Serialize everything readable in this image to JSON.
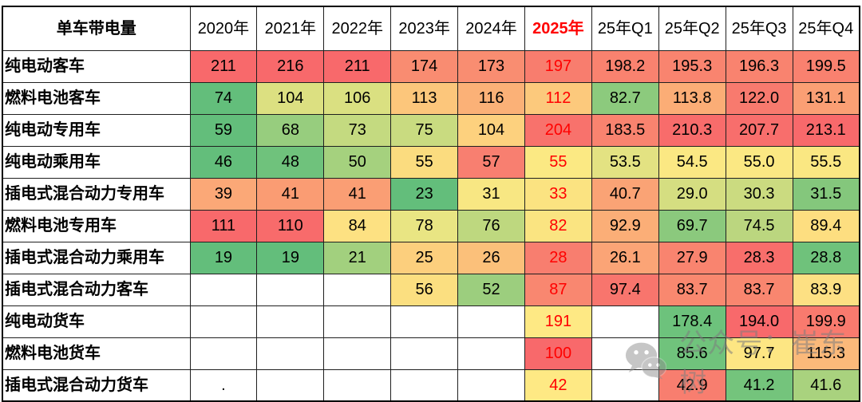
{
  "table": {
    "title": {
      "text": "单车带电量",
      "color": "#FF0000"
    },
    "columns": [
      {
        "label": "2020年",
        "red": false
      },
      {
        "label": "2021年",
        "red": false
      },
      {
        "label": "2022年",
        "red": false
      },
      {
        "label": "2023年",
        "red": false
      },
      {
        "label": "2024年",
        "red": false
      },
      {
        "label": "2025年",
        "red": true
      },
      {
        "label": "25年Q1",
        "red": false
      },
      {
        "label": "25年Q2",
        "red": false
      },
      {
        "label": "25年Q3",
        "red": false
      },
      {
        "label": "25年Q4",
        "red": false
      }
    ],
    "rows": [
      {
        "label": "纯电动客车",
        "cells": [
          {
            "v": "211",
            "bg": "#F8696B"
          },
          {
            "v": "216",
            "bg": "#F8696B"
          },
          {
            "v": "211",
            "bg": "#F8696B"
          },
          {
            "v": "174",
            "bg": "#F98C71"
          },
          {
            "v": "173",
            "bg": "#F98D71"
          },
          {
            "v": "197",
            "bg": "#F87D6E",
            "red": true
          },
          {
            "v": "198.2",
            "bg": "#F9826F"
          },
          {
            "v": "195.3",
            "bg": "#F9846F"
          },
          {
            "v": "196.3",
            "bg": "#F9836F"
          },
          {
            "v": "199.5",
            "bg": "#F9816F"
          }
        ]
      },
      {
        "label": "燃料电池客车",
        "cells": [
          {
            "v": "74",
            "bg": "#63BE7B"
          },
          {
            "v": "104",
            "bg": "#DCE081"
          },
          {
            "v": "106",
            "bg": "#DAE081"
          },
          {
            "v": "113",
            "bg": "#FCC67B"
          },
          {
            "v": "116",
            "bg": "#FBB177"
          },
          {
            "v": "112",
            "bg": "#FCC97C",
            "red": true
          },
          {
            "v": "82.7",
            "bg": "#8CCA7D"
          },
          {
            "v": "113.8",
            "bg": "#FBAD76"
          },
          {
            "v": "122.0",
            "bg": "#F87A6E"
          },
          {
            "v": "131.1",
            "bg": "#FA9F74"
          }
        ]
      },
      {
        "label": "纯电动专用车",
        "cells": [
          {
            "v": "59",
            "bg": "#63BE7B"
          },
          {
            "v": "68",
            "bg": "#97CD7E"
          },
          {
            "v": "73",
            "bg": "#C4DA80"
          },
          {
            "v": "75",
            "bg": "#C9DB80"
          },
          {
            "v": "104",
            "bg": "#FDD17E"
          },
          {
            "v": "204",
            "bg": "#F8726C",
            "red": true
          },
          {
            "v": "183.5",
            "bg": "#F9836F"
          },
          {
            "v": "210.3",
            "bg": "#F86C6B"
          },
          {
            "v": "207.7",
            "bg": "#F86E6C"
          },
          {
            "v": "213.1",
            "bg": "#F8696B"
          }
        ]
      },
      {
        "label": "纯电动乘用车",
        "cells": [
          {
            "v": "46",
            "bg": "#63BE7B"
          },
          {
            "v": "48",
            "bg": "#6FC27C"
          },
          {
            "v": "50",
            "bg": "#A5D17E"
          },
          {
            "v": "55",
            "bg": "#FBDC7F"
          },
          {
            "v": "57",
            "bg": "#F87F70"
          },
          {
            "v": "55",
            "bg": "#FBE983",
            "red": true
          },
          {
            "v": "53.5",
            "bg": "#E3E282"
          },
          {
            "v": "54.5",
            "bg": "#FBE883"
          },
          {
            "v": "55.0",
            "bg": "#FBE883"
          },
          {
            "v": "55.5",
            "bg": "#FAE782"
          }
        ]
      },
      {
        "label": "插电式混合动力专用车",
        "cells": [
          {
            "v": "39",
            "bg": "#FBA877"
          },
          {
            "v": "41",
            "bg": "#FA9C73"
          },
          {
            "v": "41",
            "bg": "#FA9E74"
          },
          {
            "v": "23",
            "bg": "#63BE7B"
          },
          {
            "v": "31",
            "bg": "#F8E783"
          },
          {
            "v": "33",
            "bg": "#FBE381",
            "red": true
          },
          {
            "v": "40.7",
            "bg": "#FAA375"
          },
          {
            "v": "29.0",
            "bg": "#D5DE81"
          },
          {
            "v": "30.3",
            "bg": "#CBDB80"
          },
          {
            "v": "31.5",
            "bg": "#84C77C"
          }
        ]
      },
      {
        "label": "燃料电池专用车",
        "cells": [
          {
            "v": "111",
            "bg": "#F8696B"
          },
          {
            "v": "110",
            "bg": "#F86B6B"
          },
          {
            "v": "84",
            "bg": "#FDE182"
          },
          {
            "v": "78",
            "bg": "#E9E583"
          },
          {
            "v": "76",
            "bg": "#BED87F"
          },
          {
            "v": "82",
            "bg": "#FAE481",
            "red": true
          },
          {
            "v": "92.9",
            "bg": "#FBAE77"
          },
          {
            "v": "69.7",
            "bg": "#8BC97D"
          },
          {
            "v": "74.5",
            "bg": "#BBD67F"
          },
          {
            "v": "89.4",
            "bg": "#FDDE80"
          }
        ]
      },
      {
        "label": "插电式混合动力乘用车",
        "cells": [
          {
            "v": "19",
            "bg": "#63BE7B"
          },
          {
            "v": "19",
            "bg": "#63BE7B"
          },
          {
            "v": "21",
            "bg": "#A2D07E"
          },
          {
            "v": "25",
            "bg": "#FCCF7D"
          },
          {
            "v": "26",
            "bg": "#FBC07A"
          },
          {
            "v": "28",
            "bg": "#F87E6F",
            "red": true
          },
          {
            "v": "26.1",
            "bg": "#FBA476"
          },
          {
            "v": "27.9",
            "bg": "#F9846F"
          },
          {
            "v": "28.3",
            "bg": "#F86E6B"
          },
          {
            "v": "28.8",
            "bg": "#6FC27B"
          }
        ]
      },
      {
        "label": "插电式混合动力客车",
        "cells": [
          {
            "v": "",
            "bg": "#FFFFFF"
          },
          {
            "v": "",
            "bg": "#FFFFFF"
          },
          {
            "v": "",
            "bg": "#FFFFFF"
          },
          {
            "v": "56",
            "bg": "#FBDF80"
          },
          {
            "v": "52",
            "bg": "#9CCE7E"
          },
          {
            "v": "87",
            "bg": "#F98770",
            "red": true
          },
          {
            "v": "97.4",
            "bg": "#F8756D"
          },
          {
            "v": "83.7",
            "bg": "#F9886F"
          },
          {
            "v": "83.7",
            "bg": "#F9866F"
          },
          {
            "v": "83.9",
            "bg": "#FDE083"
          }
        ]
      },
      {
        "label": "纯电动货车",
        "cells": [
          {
            "v": "",
            "bg": "#FFFFFF"
          },
          {
            "v": "",
            "bg": "#FFFFFF"
          },
          {
            "v": "",
            "bg": "#FFFFFF"
          },
          {
            "v": "",
            "bg": "#FFFFFF"
          },
          {
            "v": "",
            "bg": "#FFFFFF"
          },
          {
            "v": "191",
            "bg": "#FEE984",
            "red": true
          },
          {
            "v": "",
            "bg": "#FFFFFF"
          },
          {
            "v": "178.4",
            "bg": "#6DC27C"
          },
          {
            "v": "194.0",
            "bg": "#F8696B"
          },
          {
            "v": "199.9",
            "bg": "#F97A6E"
          }
        ]
      },
      {
        "label": "燃料电池货车",
        "cells": [
          {
            "v": "",
            "bg": "#FFFFFF"
          },
          {
            "v": "",
            "bg": "#FFFFFF"
          },
          {
            "v": "",
            "bg": "#FFFFFF"
          },
          {
            "v": "",
            "bg": "#FFFFFF"
          },
          {
            "v": "",
            "bg": "#FFFFFF"
          },
          {
            "v": "100",
            "bg": "#F8696B",
            "red": true
          },
          {
            "v": "",
            "bg": "#FFFFFF"
          },
          {
            "v": "85.6",
            "bg": "#70C37C"
          },
          {
            "v": "97.7",
            "bg": "#FDE683"
          },
          {
            "v": "115.3",
            "bg": "#FBB97A"
          }
        ]
      },
      {
        "label": "插电式混合动力货车",
        "cells": [
          {
            "v": ".",
            "bg": "#FFFFFF"
          },
          {
            "v": "",
            "bg": "#FFFFFF"
          },
          {
            "v": "",
            "bg": "#FFFFFF"
          },
          {
            "v": "",
            "bg": "#FFFFFF"
          },
          {
            "v": "",
            "bg": "#FFFFFF"
          },
          {
            "v": "42",
            "bg": "#FEE984",
            "red": true
          },
          {
            "v": "",
            "bg": "#FFFFFF"
          },
          {
            "v": "42.9",
            "bg": "#F87E6F"
          },
          {
            "v": "41.2",
            "bg": "#74C47C"
          },
          {
            "v": "41.6",
            "bg": "#A9D27E"
          }
        ]
      }
    ]
  },
  "watermark": {
    "text": "公众号：崔东树",
    "icon": "wechat-icon",
    "color": "#7d7d7d"
  },
  "accent_colors": {
    "red_text": "#FF0000",
    "scale_low": "#63BE7B",
    "scale_mid": "#FFEB84",
    "scale_high": "#F8696B"
  },
  "chart_data": {
    "type": "heatmap",
    "title": "单车带电量",
    "legend_position": "none",
    "grid": true,
    "color_scale": "green (low) → yellow → red (high)",
    "columns": [
      "2020年",
      "2021年",
      "2022年",
      "2023年",
      "2024年",
      "2025年",
      "25年Q1",
      "25年Q2",
      "25年Q3",
      "25年Q4"
    ],
    "rows": [
      "纯电动客车",
      "燃料电池客车",
      "纯电动专用车",
      "纯电动乘用车",
      "插电式混合动力专用车",
      "燃料电池专用车",
      "插电式混合动力乘用车",
      "插电式混合动力客车",
      "纯电动货车",
      "燃料电池货车",
      "插电式混合动力货车"
    ],
    "values": [
      [
        211,
        216,
        211,
        174,
        173,
        197,
        198.2,
        195.3,
        196.3,
        199.5
      ],
      [
        74,
        104,
        106,
        113,
        116,
        112,
        82.7,
        113.8,
        122.0,
        131.1
      ],
      [
        59,
        68,
        73,
        75,
        104,
        204,
        183.5,
        210.3,
        207.7,
        213.1
      ],
      [
        46,
        48,
        50,
        55,
        57,
        55,
        53.5,
        54.5,
        55.0,
        55.5
      ],
      [
        39,
        41,
        41,
        23,
        31,
        33,
        40.7,
        29.0,
        30.3,
        31.5
      ],
      [
        111,
        110,
        84,
        78,
        76,
        82,
        92.9,
        69.7,
        74.5,
        89.4
      ],
      [
        19,
        19,
        21,
        25,
        26,
        28,
        26.1,
        27.9,
        28.3,
        28.8
      ],
      [
        null,
        null,
        null,
        56,
        52,
        87,
        97.4,
        83.7,
        83.7,
        83.9
      ],
      [
        null,
        null,
        null,
        null,
        null,
        191,
        null,
        178.4,
        194.0,
        199.9
      ],
      [
        null,
        null,
        null,
        null,
        null,
        100,
        null,
        85.6,
        97.7,
        115.3
      ],
      [
        null,
        null,
        null,
        null,
        null,
        42,
        null,
        42.9,
        41.2,
        41.6
      ]
    ]
  }
}
